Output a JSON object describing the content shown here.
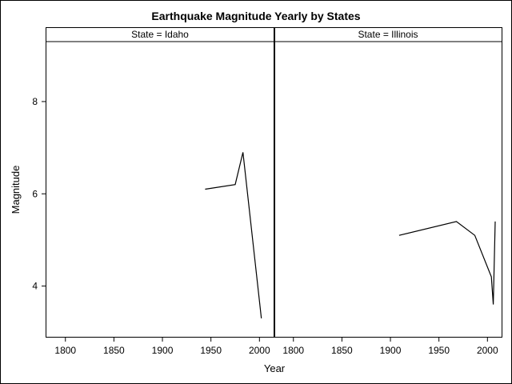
{
  "chart_data": {
    "type": "line",
    "title": "Earthquake Magnitude Yearly by States",
    "xlabel": "Year",
    "ylabel": "Magnitude",
    "xlim": [
      1780,
      2015
    ],
    "ylim": [
      2.9,
      9.3
    ],
    "xticks": [
      "1800",
      "1850",
      "1900",
      "1950",
      "2000"
    ],
    "yticks": [
      "4",
      "6",
      "8"
    ],
    "xtick_values": [
      1800,
      1850,
      1900,
      1950,
      2000
    ],
    "ytick_values": [
      4,
      6,
      8
    ],
    "panels": [
      {
        "label": "State = Idaho",
        "series": {
          "x": [
            1944,
            1975,
            1983,
            2002
          ],
          "y": [
            6.1,
            6.2,
            6.9,
            3.3
          ]
        }
      },
      {
        "label": "State = Illinois",
        "series": {
          "x": [
            1909,
            1968,
            1987,
            2004,
            2006,
            2008
          ],
          "y": [
            5.1,
            5.4,
            5.1,
            4.2,
            3.6,
            5.4
          ]
        }
      }
    ]
  }
}
